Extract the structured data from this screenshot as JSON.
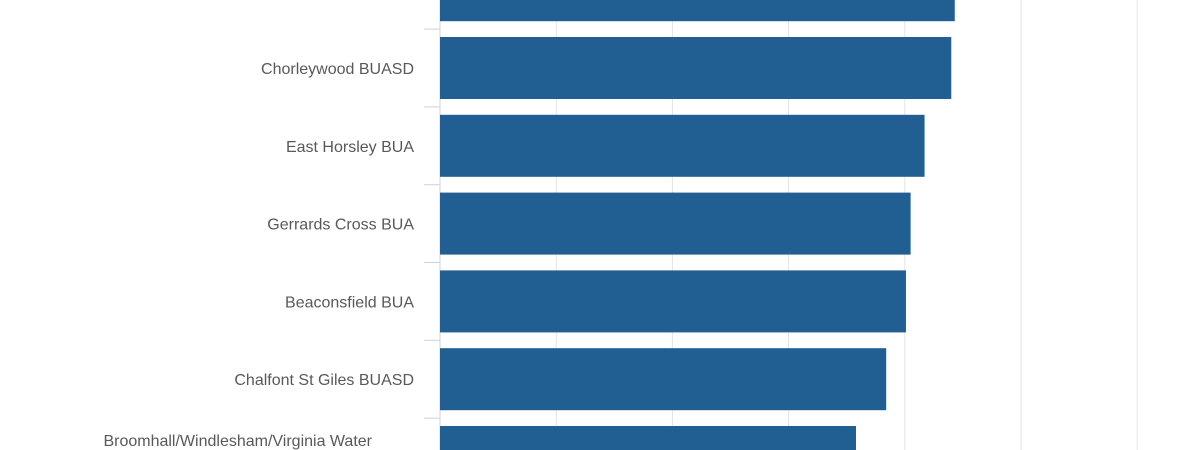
{
  "chart_data": {
    "type": "bar",
    "orientation": "horizontal",
    "title": "",
    "xlabel": "",
    "ylabel": "",
    "categories": [
      "",
      "Chorleywood BUASD",
      "East Horsley BUA",
      "Gerrards Cross BUA",
      "Beaconsfield BUA",
      "Chalfont St Giles BUASD",
      "Broomhall/Windlesham/Virginia Water"
    ],
    "values": [
      4.43,
      4.4,
      4.17,
      4.05,
      4.01,
      3.84,
      3.58
    ],
    "xlim": [
      0,
      6
    ],
    "grid": true,
    "bar_color": "#215f93",
    "note": "Values expressed in gridline units; axis tick labels not visible"
  }
}
